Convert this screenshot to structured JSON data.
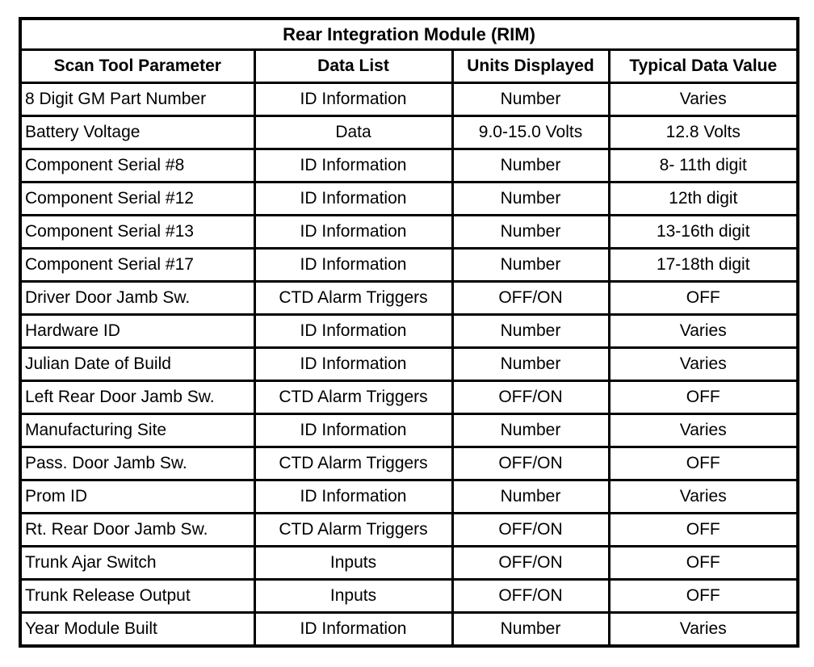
{
  "table": {
    "title": "Rear Integration Module (RIM)",
    "columns": [
      "Scan Tool Parameter",
      "Data List",
      "Units Displayed",
      "Typical Data Value"
    ],
    "rows": [
      [
        "8 Digit GM Part Number",
        "ID Information",
        "Number",
        "Varies"
      ],
      [
        "Battery Voltage",
        "Data",
        "9.0-15.0 Volts",
        "12.8 Volts"
      ],
      [
        "Component Serial #8",
        "ID Information",
        "Number",
        "8- 11th digit"
      ],
      [
        "Component Serial #12",
        "ID Information",
        "Number",
        "12th digit"
      ],
      [
        "Component Serial #13",
        "ID Information",
        "Number",
        "13-16th digit"
      ],
      [
        "Component Serial #17",
        "ID Information",
        "Number",
        "17-18th digit"
      ],
      [
        "Driver Door Jamb Sw.",
        "CTD Alarm Triggers",
        "OFF/ON",
        "OFF"
      ],
      [
        "Hardware ID",
        "ID Information",
        "Number",
        "Varies"
      ],
      [
        "Julian Date of Build",
        "ID Information",
        "Number",
        "Varies"
      ],
      [
        "Left Rear Door Jamb Sw.",
        "CTD Alarm Triggers",
        "OFF/ON",
        "OFF"
      ],
      [
        "Manufacturing Site",
        "ID Information",
        "Number",
        "Varies"
      ],
      [
        "Pass. Door Jamb Sw.",
        "CTD Alarm Triggers",
        "OFF/ON",
        "OFF"
      ],
      [
        "Prom ID",
        "ID Information",
        "Number",
        "Varies"
      ],
      [
        "Rt. Rear Door Jamb Sw.",
        "CTD Alarm Triggers",
        "OFF/ON",
        "OFF"
      ],
      [
        "Trunk Ajar Switch",
        "Inputs",
        "OFF/ON",
        "OFF"
      ],
      [
        "Trunk Release Output",
        "Inputs",
        "OFF/ON",
        "OFF"
      ],
      [
        "Year Module Built",
        "ID Information",
        "Number",
        "Varies"
      ]
    ],
    "border_color": "#000000",
    "background_color": "#ffffff"
  }
}
